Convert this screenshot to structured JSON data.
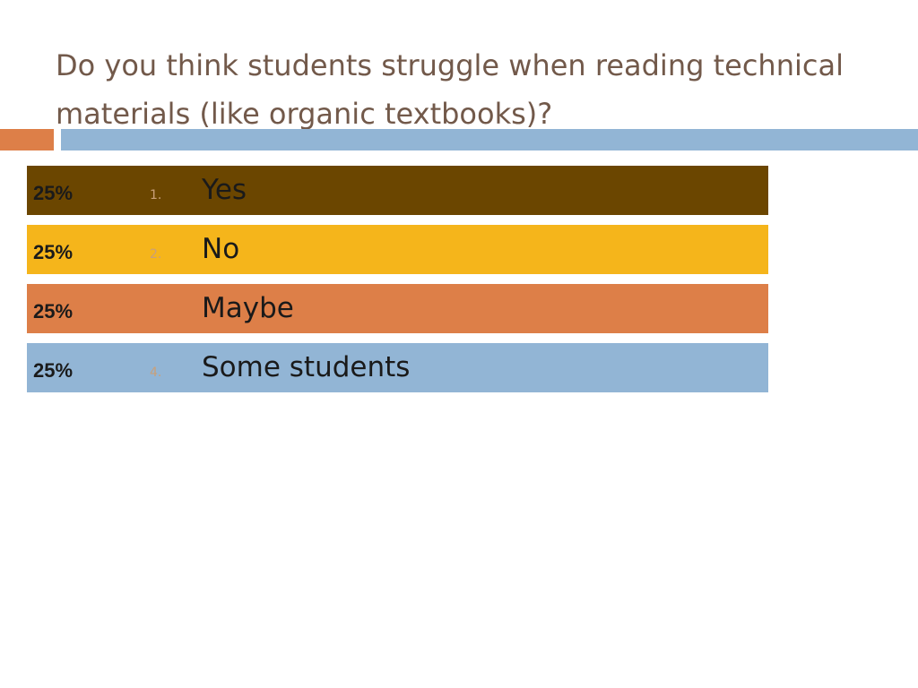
{
  "slide": {
    "title": "Do you think students struggle when reading technical materials (like organic textbooks)?"
  },
  "colors": {
    "title": "#72594a",
    "rule_orange": "#dd7f48",
    "rule_blue": "#92b5d5",
    "number_text": "#c9a079"
  },
  "chart_data": {
    "type": "bar",
    "title": "Do you think students struggle when reading technical materials (like organic textbooks)?",
    "xlabel": "",
    "ylabel": "",
    "xlim": [
      0,
      100
    ],
    "grid": false,
    "legend": "none",
    "categories": [
      "Yes",
      "No",
      "Maybe",
      "Some students"
    ],
    "numbers": [
      "1.",
      "2.",
      "",
      "4."
    ],
    "values": [
      25,
      25,
      25,
      25
    ],
    "value_labels": [
      "25%",
      "25%",
      "25%",
      "25%"
    ],
    "colors": [
      "#6b4600",
      "#f5b51b",
      "#dd7f48",
      "#92b5d5"
    ]
  }
}
